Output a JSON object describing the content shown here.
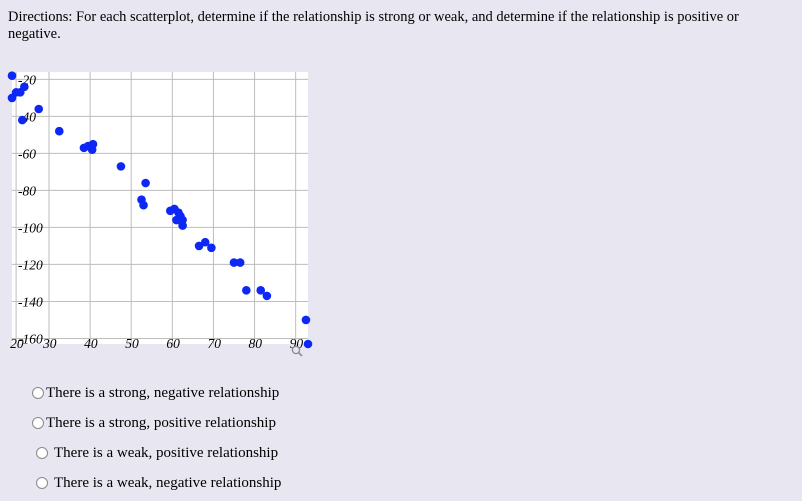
{
  "question": {
    "directions": "Directions:  For each scatterplot, determine if the relationship is strong or weak, and determine if the relationship is positive or negative."
  },
  "chart_data": {
    "type": "scatter",
    "title": "",
    "xlabel": "",
    "ylabel": "",
    "x_ticks": [
      "20",
      "30",
      "40",
      "50",
      "60",
      "70",
      "80",
      "90"
    ],
    "y_ticks": [
      "-20",
      "-40",
      "-60",
      "-80",
      "-100",
      "-120",
      "-140",
      "-160"
    ],
    "xlim": [
      21,
      93
    ],
    "ylim": [
      -163,
      -16
    ],
    "grid": true,
    "point_color": "#0d27f5",
    "points": [
      {
        "x": 21,
        "y": -18
      },
      {
        "x": 21,
        "y": -30
      },
      {
        "x": 22,
        "y": -27
      },
      {
        "x": 23,
        "y": -27
      },
      {
        "x": 24,
        "y": -24
      },
      {
        "x": 23.5,
        "y": -42
      },
      {
        "x": 27.5,
        "y": -36
      },
      {
        "x": 32.5,
        "y": -48
      },
      {
        "x": 38.5,
        "y": -57
      },
      {
        "x": 39.5,
        "y": -56
      },
      {
        "x": 40.5,
        "y": -58
      },
      {
        "x": 40.7,
        "y": -55
      },
      {
        "x": 47.5,
        "y": -67
      },
      {
        "x": 52.5,
        "y": -85
      },
      {
        "x": 53,
        "y": -88
      },
      {
        "x": 53.5,
        "y": -76
      },
      {
        "x": 59.5,
        "y": -91
      },
      {
        "x": 60.5,
        "y": -90
      },
      {
        "x": 61.5,
        "y": -92
      },
      {
        "x": 61,
        "y": -96
      },
      {
        "x": 62,
        "y": -94
      },
      {
        "x": 62.5,
        "y": -99
      },
      {
        "x": 62.5,
        "y": -96
      },
      {
        "x": 66.5,
        "y": -110
      },
      {
        "x": 68,
        "y": -108
      },
      {
        "x": 69.5,
        "y": -111
      },
      {
        "x": 75,
        "y": -119
      },
      {
        "x": 76.5,
        "y": -119
      },
      {
        "x": 78,
        "y": -134
      },
      {
        "x": 81.5,
        "y": -134
      },
      {
        "x": 83,
        "y": -137
      },
      {
        "x": 92.5,
        "y": -150
      },
      {
        "x": 93,
        "y": -163
      }
    ]
  },
  "options": [
    {
      "label": "There is a strong, negative relationship"
    },
    {
      "label": "There is a strong, positive relationship"
    },
    {
      "label": "There is a weak, positive relationship"
    },
    {
      "label": "There is a weak, negative relationship"
    }
  ]
}
